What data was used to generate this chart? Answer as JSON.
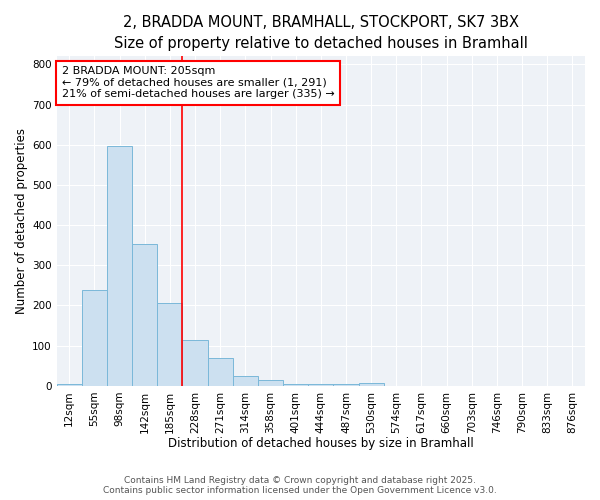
{
  "title_line1": "2, BRADDA MOUNT, BRAMHALL, STOCKPORT, SK7 3BX",
  "title_line2": "Size of property relative to detached houses in Bramhall",
  "xlabel": "Distribution of detached houses by size in Bramhall",
  "ylabel": "Number of detached properties",
  "bar_labels": [
    "12sqm",
    "55sqm",
    "98sqm",
    "142sqm",
    "185sqm",
    "228sqm",
    "271sqm",
    "314sqm",
    "358sqm",
    "401sqm",
    "444sqm",
    "487sqm",
    "530sqm",
    "574sqm",
    "617sqm",
    "660sqm",
    "703sqm",
    "746sqm",
    "790sqm",
    "833sqm",
    "876sqm"
  ],
  "bar_values": [
    5,
    238,
    598,
    352,
    205,
    115,
    70,
    25,
    15,
    5,
    5,
    5,
    8,
    0,
    0,
    0,
    0,
    0,
    0,
    0,
    0
  ],
  "bar_color": "#cce0f0",
  "bar_edge_color": "#7ab8d9",
  "vline_x_index": 4.5,
  "vline_color": "red",
  "annotation_text": "2 BRADDA MOUNT: 205sqm\n← 79% of detached houses are smaller (1, 291)\n21% of semi-detached houses are larger (335) →",
  "annotation_box_color": "white",
  "annotation_box_edge_color": "red",
  "ylim": [
    0,
    820
  ],
  "yticks": [
    0,
    100,
    200,
    300,
    400,
    500,
    600,
    700,
    800
  ],
  "footer_line1": "Contains HM Land Registry data © Crown copyright and database right 2025.",
  "footer_line2": "Contains public sector information licensed under the Open Government Licence v3.0.",
  "bg_color": "#eef2f7",
  "grid_color": "white",
  "title_fontsize": 10.5,
  "subtitle_fontsize": 9.5,
  "axis_label_fontsize": 8.5,
  "tick_fontsize": 7.5,
  "annotation_fontsize": 8,
  "footer_fontsize": 6.5
}
